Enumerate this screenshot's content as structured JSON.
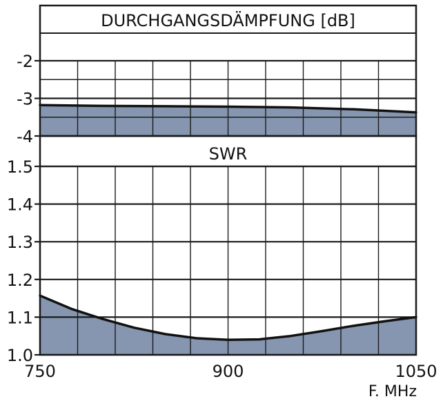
{
  "colors": {
    "fill": "#8696b0",
    "curve": "#111111",
    "grid": "#1a1a1a",
    "background": "#ffffff"
  },
  "x_axis": {
    "ticks": [
      {
        "value": 750,
        "label": "750"
      },
      {
        "value": 900,
        "label": "900"
      },
      {
        "value": 1050,
        "label": "1050"
      }
    ],
    "unit_label": "F. MHz"
  },
  "chart_data": [
    {
      "type": "area",
      "title": "DURCHGANGSDÄMPFUNG [dB]",
      "xlabel": "F. MHz",
      "ylabel": "",
      "xlim": [
        750,
        1050
      ],
      "ylim": [
        -4,
        -2
      ],
      "x_grid_step": 30,
      "yticks": [
        {
          "value": -2,
          "label": "-2"
        },
        {
          "value": -3,
          "label": "-3"
        },
        {
          "value": -4,
          "label": "-4"
        }
      ],
      "y_gridlines": [
        -2,
        -2.5,
        -3,
        -3.5,
        -4
      ],
      "grid": true,
      "series": [
        {
          "x": [
            750,
            800,
            850,
            900,
            950,
            1000,
            1050
          ],
          "y": [
            -3.18,
            -3.2,
            -3.21,
            -3.22,
            -3.24,
            -3.29,
            -3.37
          ]
        }
      ]
    },
    {
      "type": "area",
      "title": "SWR",
      "xlabel": "F. MHz",
      "ylabel": "",
      "xlim": [
        750,
        1050
      ],
      "ylim": [
        1.0,
        1.5
      ],
      "x_grid_step": 30,
      "yticks": [
        {
          "value": 1.5,
          "label": "1.5"
        },
        {
          "value": 1.4,
          "label": "1.4"
        },
        {
          "value": 1.3,
          "label": "1.3"
        },
        {
          "value": 1.2,
          "label": "1.2"
        },
        {
          "value": 1.1,
          "label": "1.1"
        },
        {
          "value": 1.0,
          "label": "1.0"
        }
      ],
      "y_gridlines": [
        1.0,
        1.1,
        1.2,
        1.3,
        1.4,
        1.5
      ],
      "grid": true,
      "series": [
        {
          "x": [
            750,
            775,
            800,
            825,
            850,
            875,
            900,
            925,
            950,
            975,
            1000,
            1025,
            1050
          ],
          "y": [
            1.157,
            1.122,
            1.095,
            1.072,
            1.055,
            1.044,
            1.04,
            1.041,
            1.05,
            1.063,
            1.077,
            1.089,
            1.1
          ]
        }
      ]
    }
  ]
}
